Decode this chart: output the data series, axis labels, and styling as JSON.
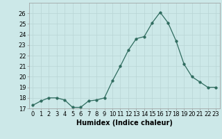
{
  "x": [
    0,
    1,
    2,
    3,
    4,
    5,
    6,
    7,
    8,
    9,
    10,
    11,
    12,
    13,
    14,
    15,
    16,
    17,
    18,
    19,
    20,
    21,
    22,
    23
  ],
  "y": [
    17.3,
    17.7,
    18.0,
    18.0,
    17.8,
    17.1,
    17.1,
    17.7,
    17.8,
    18.0,
    19.6,
    21.0,
    22.5,
    23.6,
    23.8,
    25.1,
    26.1,
    25.1,
    23.4,
    21.2,
    20.0,
    19.5,
    19.0,
    19.0
  ],
  "xlabel": "Humidex (Indice chaleur)",
  "xlim": [
    -0.5,
    23.5
  ],
  "ylim": [
    17,
    27
  ],
  "yticks": [
    17,
    18,
    19,
    20,
    21,
    22,
    23,
    24,
    25,
    26
  ],
  "xticks": [
    0,
    1,
    2,
    3,
    4,
    5,
    6,
    7,
    8,
    9,
    10,
    11,
    12,
    13,
    14,
    15,
    16,
    17,
    18,
    19,
    20,
    21,
    22,
    23
  ],
  "line_color": "#2e6b5e",
  "marker_size": 2.5,
  "bg_color": "#cce8e8",
  "grid_color": "#b8d4d4",
  "label_fontsize": 7,
  "tick_fontsize": 6
}
